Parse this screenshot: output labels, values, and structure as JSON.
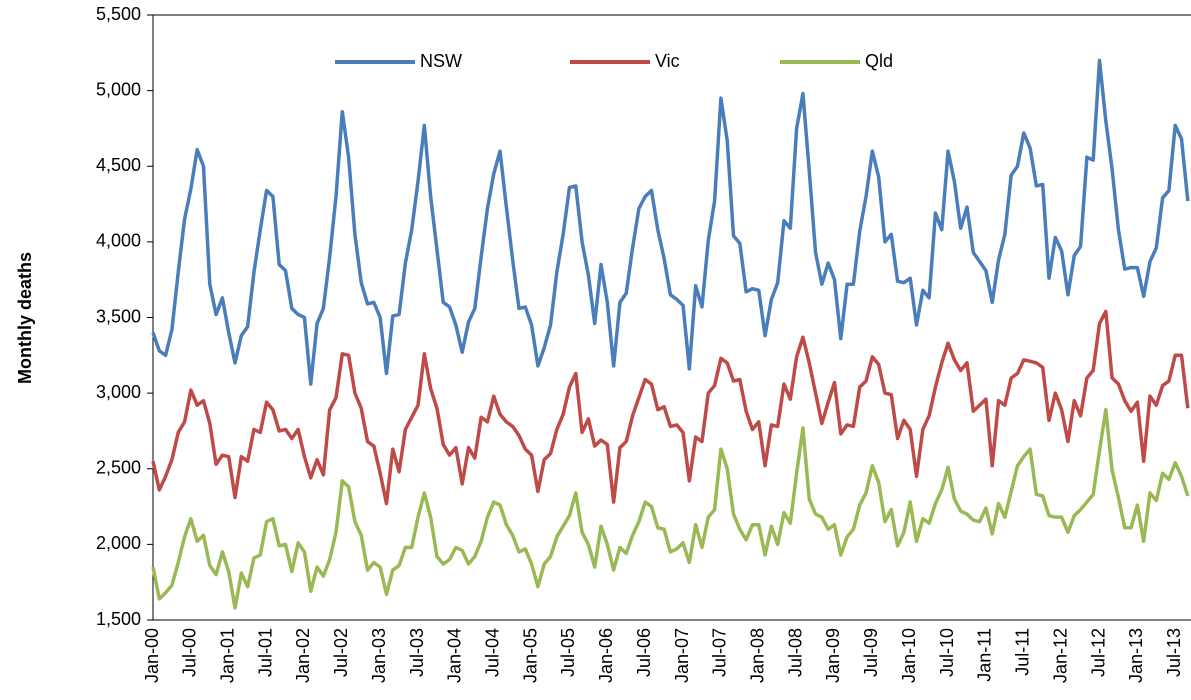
{
  "chart_data": {
    "type": "line",
    "y_label": "Monthly deaths",
    "categories": [
      "Jan-00",
      null,
      null,
      null,
      null,
      null,
      "Jul-00",
      null,
      null,
      null,
      null,
      null,
      "Jan-01",
      null,
      null,
      null,
      null,
      null,
      "Jul-01",
      null,
      null,
      null,
      null,
      null,
      "Jan-02",
      null,
      null,
      null,
      null,
      null,
      "Jul-02",
      null,
      null,
      null,
      null,
      null,
      "Jan-03",
      null,
      null,
      null,
      null,
      null,
      "Jul-03",
      null,
      null,
      null,
      null,
      null,
      "Jan-04",
      null,
      null,
      null,
      null,
      null,
      "Jul-04",
      null,
      null,
      null,
      null,
      null,
      "Jan-05",
      null,
      null,
      null,
      null,
      null,
      "Jul-05",
      null,
      null,
      null,
      null,
      null,
      "Jan-06",
      null,
      null,
      null,
      null,
      null,
      "Jul-06",
      null,
      null,
      null,
      null,
      null,
      "Jan-07",
      null,
      null,
      null,
      null,
      null,
      "Jul-07",
      null,
      null,
      null,
      null,
      null,
      "Jan-08",
      null,
      null,
      null,
      null,
      null,
      "Jul-08",
      null,
      null,
      null,
      null,
      null,
      "Jan-09",
      null,
      null,
      null,
      null,
      null,
      "Jul-09",
      null,
      null,
      null,
      null,
      null,
      "Jan-10",
      null,
      null,
      null,
      null,
      null,
      "Jul-10",
      null,
      null,
      null,
      null,
      null,
      "Jan-11",
      null,
      null,
      null,
      null,
      null,
      "Jul-11",
      null,
      null,
      null,
      null,
      null,
      "Jan-12",
      null,
      null,
      null,
      null,
      null,
      "Jul-12",
      null,
      null,
      null,
      null,
      null,
      "Jan-13",
      null,
      null,
      null,
      null,
      null,
      "Jul-13",
      null,
      null
    ],
    "series": [
      {
        "name": "NSW",
        "color": "#4a7ebb",
        "values": [
          3400,
          3280,
          3250,
          3420,
          3800,
          4150,
          4350,
          4610,
          4500,
          3720,
          3520,
          3630,
          3400,
          3200,
          3380,
          3440,
          3800,
          4080,
          4340,
          4300,
          3850,
          3810,
          3560,
          3520,
          3500,
          3060,
          3460,
          3560,
          3900,
          4300,
          4860,
          4560,
          4050,
          3730,
          3590,
          3600,
          3500,
          3130,
          3510,
          3520,
          3860,
          4080,
          4400,
          4770,
          4300,
          3950,
          3600,
          3570,
          3450,
          3270,
          3470,
          3560,
          3900,
          4220,
          4450,
          4600,
          4230,
          3880,
          3560,
          3570,
          3450,
          3180,
          3300,
          3450,
          3800,
          4050,
          4360,
          4370,
          4000,
          3780,
          3460,
          3850,
          3600,
          3180,
          3600,
          3660,
          3960,
          4220,
          4300,
          4340,
          4080,
          3890,
          3650,
          3620,
          3580,
          3160,
          3710,
          3570,
          4010,
          4270,
          4950,
          4670,
          4040,
          3990,
          3670,
          3690,
          3680,
          3380,
          3620,
          3730,
          4140,
          4090,
          4750,
          4980,
          4470,
          3930,
          3720,
          3860,
          3750,
          3360,
          3720,
          3720,
          4070,
          4300,
          4600,
          4430,
          4000,
          4050,
          3740,
          3730,
          3760,
          3450,
          3680,
          3630,
          4190,
          4080,
          4600,
          4400,
          4090,
          4230,
          3930,
          3870,
          3810,
          3600,
          3880,
          4050,
          4440,
          4500,
          4720,
          4620,
          4370,
          4380,
          3760,
          4030,
          3940,
          3650,
          3910,
          3970,
          4560,
          4540,
          5200,
          4800,
          4480,
          4080,
          3820,
          3830,
          3830,
          3640,
          3870,
          3960,
          4290,
          4340,
          4770,
          4680,
          4270
        ]
      },
      {
        "name": "Vic",
        "color": "#be4b48",
        "values": [
          2550,
          2360,
          2450,
          2560,
          2740,
          2810,
          3020,
          2920,
          2950,
          2800,
          2530,
          2590,
          2580,
          2310,
          2580,
          2550,
          2760,
          2740,
          2940,
          2890,
          2750,
          2760,
          2700,
          2760,
          2580,
          2440,
          2560,
          2460,
          2890,
          2970,
          3260,
          3250,
          3000,
          2900,
          2680,
          2650,
          2470,
          2270,
          2630,
          2480,
          2760,
          2840,
          2920,
          3260,
          3030,
          2900,
          2660,
          2590,
          2640,
          2400,
          2640,
          2570,
          2840,
          2810,
          2980,
          2860,
          2810,
          2780,
          2720,
          2630,
          2590,
          2350,
          2560,
          2600,
          2760,
          2860,
          3040,
          3130,
          2740,
          2830,
          2650,
          2690,
          2660,
          2280,
          2640,
          2680,
          2850,
          2970,
          3090,
          3060,
          2890,
          2910,
          2780,
          2790,
          2740,
          2420,
          2710,
          2680,
          3000,
          3050,
          3230,
          3200,
          3080,
          3090,
          2880,
          2760,
          2810,
          2520,
          2790,
          2780,
          3060,
          2960,
          3240,
          3370,
          3200,
          3000,
          2800,
          2940,
          3070,
          2730,
          2790,
          2780,
          3040,
          3080,
          3240,
          3190,
          3000,
          2990,
          2700,
          2820,
          2760,
          2450,
          2760,
          2850,
          3040,
          3200,
          3330,
          3220,
          3150,
          3200,
          2880,
          2920,
          2960,
          2520,
          2950,
          2920,
          3100,
          3130,
          3220,
          3210,
          3200,
          3170,
          2820,
          3000,
          2890,
          2680,
          2950,
          2850,
          3100,
          3150,
          3460,
          3540,
          3100,
          3060,
          2950,
          2880,
          2940,
          2550,
          2980,
          2920,
          3050,
          3080,
          3250,
          3250,
          2900
        ]
      },
      {
        "name": "Qld",
        "color": "#98b954",
        "values": [
          1850,
          1640,
          1680,
          1730,
          1880,
          2050,
          2170,
          2020,
          2060,
          1860,
          1800,
          1950,
          1820,
          1580,
          1810,
          1720,
          1910,
          1930,
          2150,
          2170,
          1990,
          2000,
          1820,
          2010,
          1950,
          1690,
          1850,
          1790,
          1900,
          2080,
          2420,
          2380,
          2150,
          2060,
          1830,
          1880,
          1850,
          1670,
          1830,
          1860,
          1980,
          1980,
          2180,
          2340,
          2180,
          1920,
          1870,
          1900,
          1980,
          1960,
          1870,
          1920,
          2020,
          2180,
          2280,
          2260,
          2130,
          2060,
          1950,
          1970,
          1870,
          1720,
          1870,
          1920,
          2050,
          2120,
          2190,
          2340,
          2080,
          2000,
          1850,
          2120,
          2000,
          1830,
          1980,
          1940,
          2060,
          2150,
          2280,
          2250,
          2110,
          2100,
          1950,
          1970,
          2010,
          1880,
          2130,
          1980,
          2180,
          2230,
          2630,
          2500,
          2200,
          2100,
          2030,
          2130,
          2130,
          1930,
          2120,
          2000,
          2210,
          2140,
          2470,
          2770,
          2300,
          2200,
          2180,
          2100,
          2130,
          1930,
          2050,
          2100,
          2260,
          2340,
          2520,
          2410,
          2150,
          2230,
          1990,
          2080,
          2280,
          2020,
          2170,
          2140,
          2270,
          2360,
          2510,
          2300,
          2220,
          2200,
          2160,
          2150,
          2240,
          2070,
          2270,
          2180,
          2350,
          2520,
          2580,
          2630,
          2330,
          2320,
          2190,
          2180,
          2180,
          2080,
          2190,
          2230,
          2280,
          2330,
          2620,
          2890,
          2490,
          2310,
          2110,
          2110,
          2260,
          2020,
          2340,
          2290,
          2470,
          2430,
          2540,
          2450,
          2320
        ]
      }
    ],
    "ylim": [
      1500,
      5500
    ],
    "yticks": [
      {
        "value": 1500,
        "label": "1,500"
      },
      {
        "value": 2000,
        "label": "2,000"
      },
      {
        "value": 2500,
        "label": "2,500"
      },
      {
        "value": 3000,
        "label": "3,000"
      },
      {
        "value": 3500,
        "label": "3,500"
      },
      {
        "value": 4000,
        "label": "4,000"
      },
      {
        "value": 4500,
        "label": "4,500"
      },
      {
        "value": 5000,
        "label": "5,000"
      },
      {
        "value": 5500,
        "label": "5,500"
      }
    ],
    "grid": false,
    "legend": "top"
  }
}
